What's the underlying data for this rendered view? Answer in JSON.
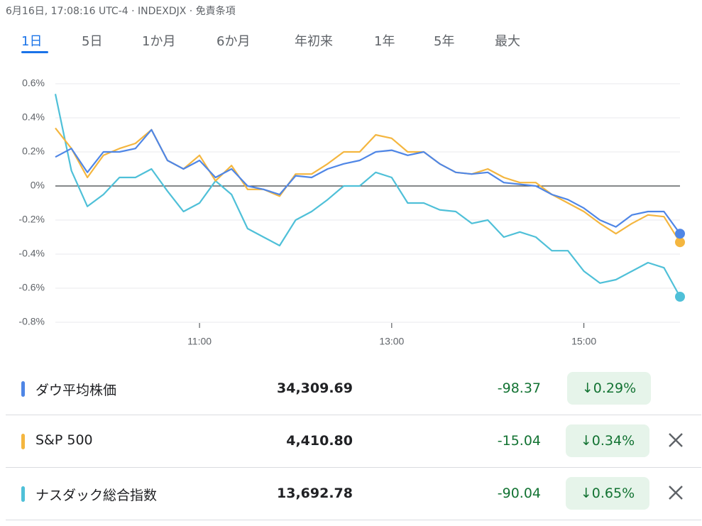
{
  "header": {
    "title": "6月16日, 17:08:16 UTC-4 · INDEXDJX · 免責条項"
  },
  "tabs": [
    "1日",
    "5日",
    "1か月",
    "6か月",
    "年初来",
    "1年",
    "5年",
    "最大"
  ],
  "chart_data": {
    "type": "line",
    "x": [
      570,
      580,
      590,
      600,
      610,
      620,
      630,
      640,
      650,
      660,
      670,
      680,
      690,
      700,
      710,
      720,
      730,
      740,
      750,
      760,
      770,
      780,
      790,
      800,
      810,
      820,
      830,
      840,
      850,
      860,
      870,
      880,
      890,
      900,
      910,
      920,
      930,
      940,
      950,
      960
    ],
    "xlim": [
      570,
      960
    ],
    "xticks": [
      {
        "value": 660,
        "label": "11:00"
      },
      {
        "value": 780,
        "label": "13:00"
      },
      {
        "value": 900,
        "label": "15:00"
      }
    ],
    "ylim": [
      -0.8,
      0.6
    ],
    "yticks": [
      {
        "value": 0.6,
        "label": "0.6%"
      },
      {
        "value": 0.4,
        "label": "0.4%"
      },
      {
        "value": 0.2,
        "label": "0.2%"
      },
      {
        "value": 0,
        "label": "0%"
      },
      {
        "value": -0.2,
        "label": "-0.2%"
      },
      {
        "value": -0.4,
        "label": "-0.4%"
      },
      {
        "value": -0.6,
        "label": "-0.6%"
      },
      {
        "value": -0.8,
        "label": "-0.8%"
      }
    ],
    "grid": true,
    "series": [
      {
        "name": "ダウ平均株価",
        "color": "#4f86e6",
        "values": [
          0.17,
          0.22,
          0.08,
          0.2,
          0.2,
          0.22,
          0.33,
          0.15,
          0.1,
          0.15,
          0.05,
          0.1,
          0.0,
          -0.02,
          -0.05,
          0.06,
          0.05,
          0.1,
          0.13,
          0.15,
          0.2,
          0.21,
          0.18,
          0.2,
          0.13,
          0.08,
          0.07,
          0.08,
          0.02,
          0.01,
          0.0,
          -0.05,
          -0.08,
          -0.13,
          -0.2,
          -0.24,
          -0.17,
          -0.15,
          -0.15,
          -0.28
        ]
      },
      {
        "name": "S&P 500",
        "color": "#f4b63f",
        "values": [
          0.34,
          0.22,
          0.05,
          0.18,
          0.22,
          0.25,
          0.33,
          0.15,
          0.1,
          0.18,
          0.03,
          0.12,
          -0.02,
          -0.02,
          -0.06,
          0.07,
          0.07,
          0.13,
          0.2,
          0.2,
          0.3,
          0.28,
          0.2,
          0.2,
          0.13,
          0.08,
          0.07,
          0.1,
          0.05,
          0.02,
          0.02,
          -0.05,
          -0.1,
          -0.15,
          -0.22,
          -0.28,
          -0.22,
          -0.17,
          -0.18,
          -0.33
        ]
      },
      {
        "name": "ナスダック総合指数",
        "color": "#4fc0d8",
        "values": [
          0.54,
          0.09,
          -0.12,
          -0.05,
          0.05,
          0.05,
          0.1,
          -0.03,
          -0.15,
          -0.1,
          0.03,
          -0.05,
          -0.25,
          -0.3,
          -0.35,
          -0.2,
          -0.15,
          -0.08,
          0.0,
          0.0,
          0.08,
          0.05,
          -0.1,
          -0.1,
          -0.14,
          -0.15,
          -0.22,
          -0.2,
          -0.3,
          -0.27,
          -0.3,
          -0.38,
          -0.38,
          -0.5,
          -0.57,
          -0.55,
          -0.5,
          -0.45,
          -0.48,
          -0.65
        ]
      }
    ]
  },
  "table": {
    "rows": [
      [
        "ダウ平均株価",
        "34,309.69",
        "-98.37",
        "↓0.29%"
      ],
      [
        "S&P 500",
        "4,410.80",
        "-15.04",
        "↓0.34%"
      ],
      [
        "ナスダック総合指数",
        "13,692.78",
        "-90.04",
        "↓0.65%"
      ]
    ]
  }
}
